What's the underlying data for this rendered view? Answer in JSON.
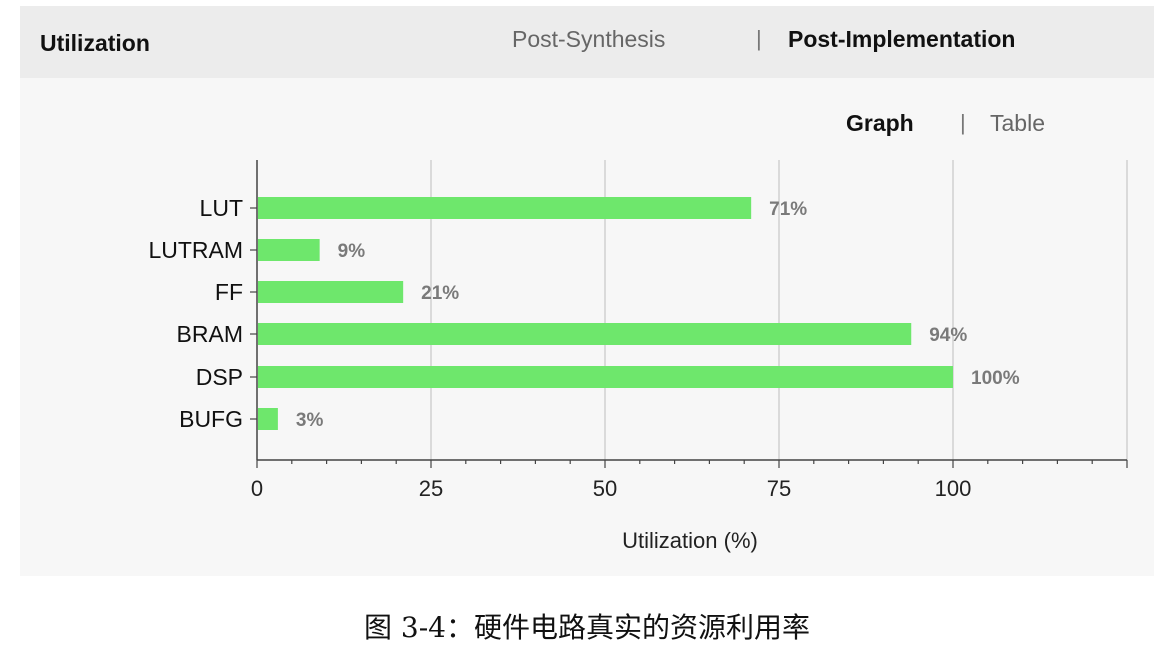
{
  "panel": {
    "title": "Utilization",
    "mode_tabs": [
      "Post-Synthesis",
      "Post-Implementation"
    ],
    "active_mode": "Post-Implementation",
    "view_tabs": [
      "Graph",
      "Table"
    ],
    "active_view": "Graph",
    "separator": "|"
  },
  "caption": "图 3-4：硬件电路真实的资源利用率",
  "chart_data": {
    "type": "bar",
    "orientation": "horizontal",
    "categories": [
      "LUT",
      "LUTRAM",
      "FF",
      "BRAM",
      "DSP",
      "BUFG"
    ],
    "values": [
      71,
      9,
      21,
      94,
      100,
      3
    ],
    "data_labels": [
      "71%",
      "9%",
      "21%",
      "94%",
      "100%",
      "3%"
    ],
    "xlabel": "Utilization (%)",
    "xticks": [
      0,
      25,
      50,
      75,
      100
    ],
    "xlim": [
      0,
      125
    ],
    "grid": true,
    "bar_color": "#6ee76c"
  }
}
